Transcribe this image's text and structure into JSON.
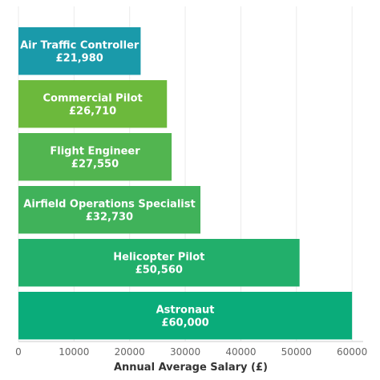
{
  "chart_data": {
    "type": "bar",
    "orientation": "horizontal",
    "title": "",
    "xlabel": "Annual Average Salary (£)",
    "ylabel": "",
    "xlim": [
      0,
      62000
    ],
    "grid": "vertical",
    "x_ticks": [
      "0",
      "10000",
      "20000",
      "30000",
      "40000",
      "50000",
      "60000"
    ],
    "bars": [
      {
        "category": "Air Traffic Controller",
        "value": 21980,
        "value_label": "£21,980",
        "color": "#1a9aaa"
      },
      {
        "category": "Commercial Pilot",
        "value": 26710,
        "value_label": "£26,710",
        "color": "#6cb93c"
      },
      {
        "category": "Flight Engineer",
        "value": 27550,
        "value_label": "£27,550",
        "color": "#52b550"
      },
      {
        "category": "Airfield Operations Specialist",
        "value": 32730,
        "value_label": "£32,730",
        "color": "#40b25a"
      },
      {
        "category": "Helicopter Pilot",
        "value": 50560,
        "value_label": "£50,560",
        "color": "#22af6b"
      },
      {
        "category": "Astronaut",
        "value": 60000,
        "value_label": "£60,000",
        "color": "#0aac7a"
      }
    ]
  }
}
